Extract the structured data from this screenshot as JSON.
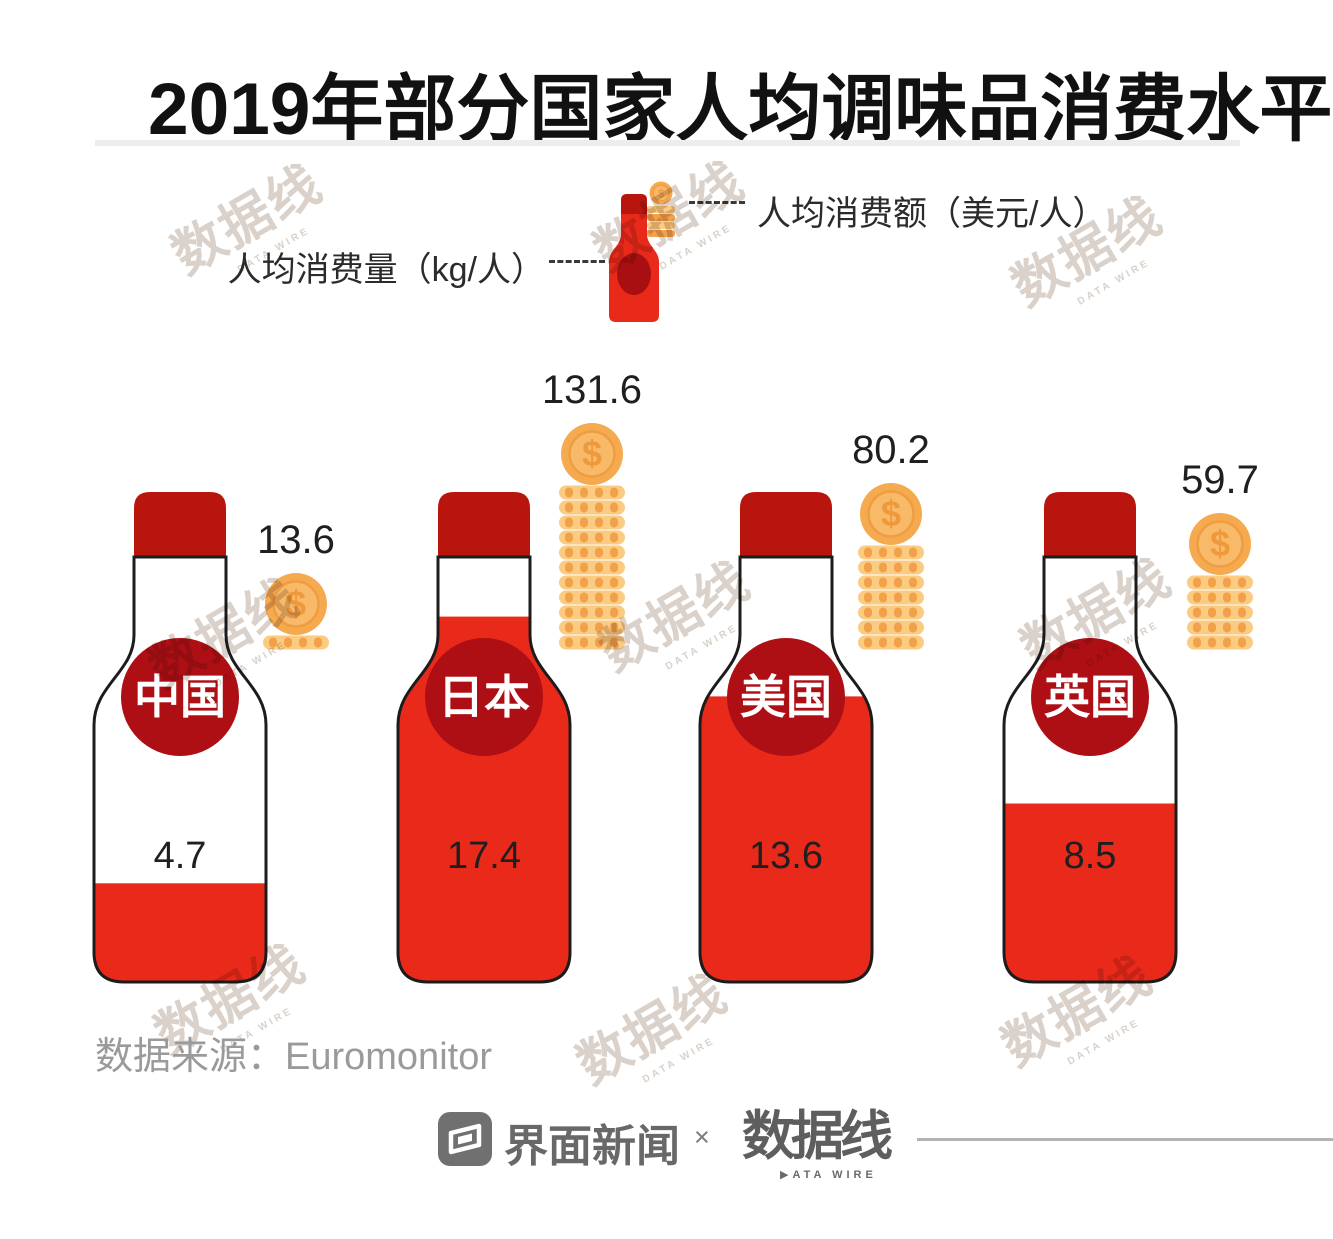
{
  "header": {
    "title": "2019年部分国家人均调味品消费水平"
  },
  "legend": {
    "quantity_label": "人均消费量（kg/人）",
    "value_label": "人均消费额（美元/人）"
  },
  "chart_data": {
    "type": "pictorial-bar",
    "title": "2019年部分国家人均调味品消费水平",
    "categories": [
      "中国",
      "日本",
      "美国",
      "英国"
    ],
    "series": [
      {
        "name": "人均消费量（kg/人）",
        "unit": "kg/人",
        "values": [
          4.7,
          17.4,
          13.6,
          8.5
        ]
      },
      {
        "name": "人均消费额（美元/人）",
        "unit": "美元/人",
        "values": [
          13.6,
          131.6,
          80.2,
          59.7
        ]
      }
    ],
    "currency_symbol": "$",
    "colors": {
      "bottle_fill": "#E92A1B",
      "cap": "#B8150F",
      "badge": "#AE0F14",
      "badge_text": "#FFFFFF",
      "outline": "#1C1C1C",
      "value_text": "#1F1F1F",
      "coin_body": "#F6AA50",
      "coin_face": "#F8B968",
      "coin_ring": "#EF9D41",
      "coin_symbol": "#EE9A3C",
      "flat_coin": "#FBCB82",
      "flat_coin_stripe": "#F2A14B"
    }
  },
  "source": {
    "text": "数据来源：Euromonitor"
  },
  "footer": {
    "jiemian_name": "界面新闻",
    "separator": "×",
    "datawire_name": "数据线",
    "datawire_sub": "▶ATA WIRE"
  },
  "watermark": {
    "text": "数据线",
    "sub": "DATA WIRE"
  }
}
